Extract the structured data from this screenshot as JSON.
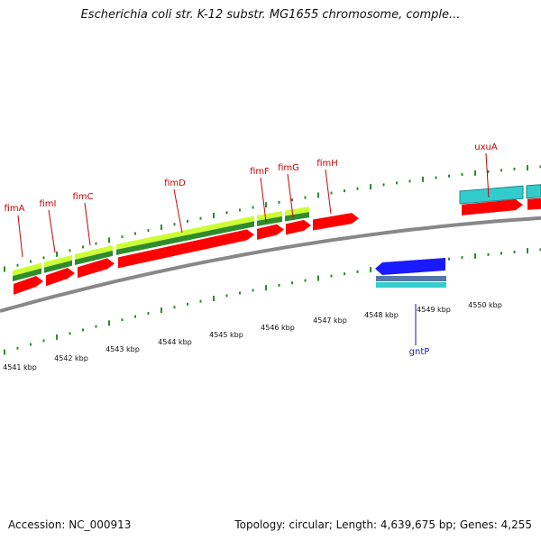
{
  "title": "Escherichia coli str. K-12 substr. MG1655 chromosome, comple...",
  "footer": {
    "accession": "Accession: NC_000913",
    "summary": "Topology: circular; Length: 4,639,675 bp; Genes: 4,255"
  },
  "colors": {
    "forward_gene": "#ff0000",
    "reverse_gene": "#1a1aff",
    "label_forward": "#cc0000",
    "label_reverse": "#1a1ab0",
    "operon_light": "#ccff33",
    "operon_dark": "#2e8b2e",
    "cyan_feature": "#33cccc",
    "tick": "#2e8b2e",
    "backbone": "#888888"
  },
  "scale_labels": [
    "4541 kbp",
    "4542 kbp",
    "4543 kbp",
    "4544 kbp",
    "4545 kbp",
    "4546 kbp",
    "4547 kbp",
    "4548 kbp",
    "4549 kbp",
    "4550 kbp"
  ],
  "genes": [
    {
      "name": "fimA",
      "strand": "+"
    },
    {
      "name": "fimI",
      "strand": "+"
    },
    {
      "name": "fimC",
      "strand": "+"
    },
    {
      "name": "fimD",
      "strand": "+"
    },
    {
      "name": "fimF",
      "strand": "+"
    },
    {
      "name": "fimG",
      "strand": "+"
    },
    {
      "name": "fimH",
      "strand": "+"
    },
    {
      "name": "uxuA",
      "strand": "+"
    },
    {
      "name": "gntP",
      "strand": "-"
    }
  ]
}
